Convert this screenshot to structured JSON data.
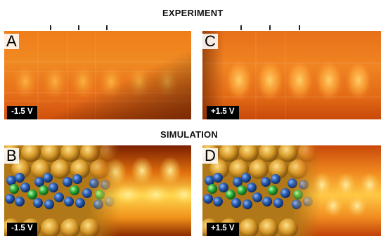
{
  "sections": {
    "experiment": "EXPERIMENT",
    "simulation": "SIMULATION"
  },
  "panels": [
    {
      "id": "A",
      "label": "A",
      "bias": "-1.5 V"
    },
    {
      "id": "C",
      "label": "C",
      "bias": "+1.5 V"
    },
    {
      "id": "B",
      "label": "B",
      "bias": "-1.5 V"
    },
    {
      "id": "D",
      "label": "D",
      "bias": "+1.5 V"
    }
  ],
  "colors": {
    "stm_dark": "#8a2a00",
    "stm_mid": "#e06a10",
    "stm_bright": "#ffd24a",
    "atom_blue": "#2a5fb0",
    "atom_green": "#2fae3c",
    "substrate_gold": "#d79a2a"
  }
}
